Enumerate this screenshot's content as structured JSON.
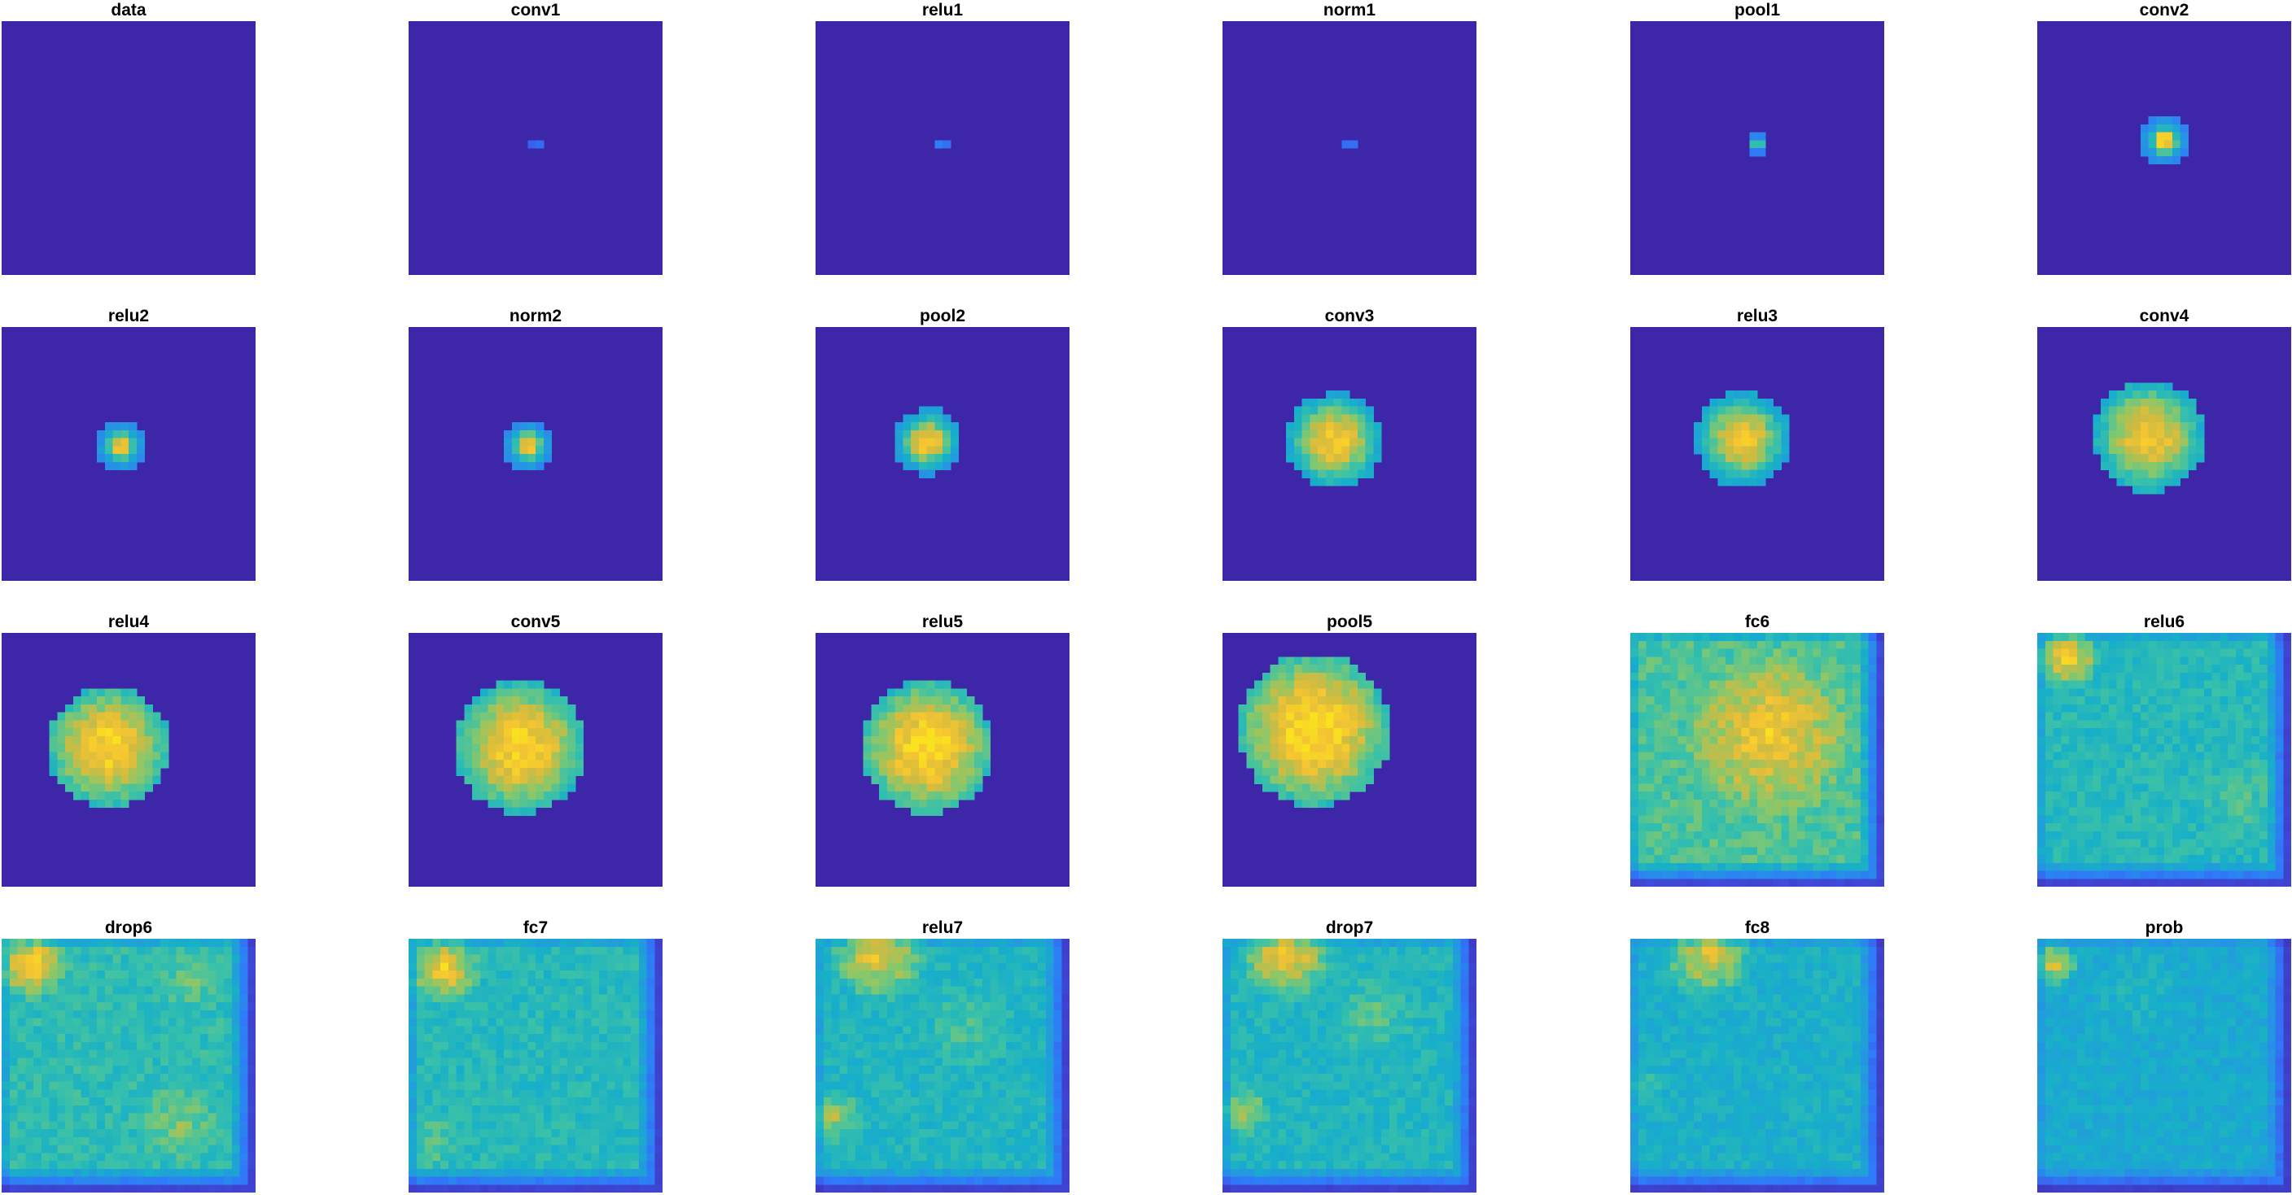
{
  "colors": {
    "background": "#3d26a8",
    "colormap": [
      "#3d26a8",
      "#3f50e1",
      "#2f7af8",
      "#2498e0",
      "#17afc9",
      "#3ac1a8",
      "#86c86c",
      "#d0bb40",
      "#f5c532",
      "#f9e11f"
    ]
  },
  "chart_data": {
    "type": "heatmap",
    "grid": {
      "rows": 4,
      "cols": 6
    },
    "panels": [
      {
        "title": "data",
        "pattern": "blob",
        "cx": 0.5,
        "cy": 0.5,
        "radius": 0.012,
        "peak": 0.55,
        "softness": 0.3
      },
      {
        "title": "conv1",
        "pattern": "blob",
        "cx": 0.5,
        "cy": 0.49,
        "radius": 0.03,
        "peak": 0.65,
        "softness": 0.2
      },
      {
        "title": "relu1",
        "pattern": "blob",
        "cx": 0.5,
        "cy": 0.49,
        "radius": 0.03,
        "peak": 0.8,
        "softness": 0.2
      },
      {
        "title": "norm1",
        "pattern": "blob",
        "cx": 0.5,
        "cy": 0.49,
        "radius": 0.03,
        "peak": 0.8,
        "softness": 0.2
      },
      {
        "title": "pool1",
        "pattern": "blob",
        "cx": 0.5,
        "cy": 0.48,
        "radius": 0.045,
        "peak": 0.95,
        "softness": 0.25
      },
      {
        "title": "conv2",
        "pattern": "blob",
        "cx": 0.5,
        "cy": 0.47,
        "radius": 0.1,
        "peak": 1.0,
        "softness": 0.35
      },
      {
        "title": "relu2",
        "pattern": "blob",
        "cx": 0.47,
        "cy": 0.47,
        "radius": 0.1,
        "peak": 0.95,
        "softness": 0.4
      },
      {
        "title": "norm2",
        "pattern": "blob",
        "cx": 0.47,
        "cy": 0.47,
        "radius": 0.1,
        "peak": 0.95,
        "softness": 0.4
      },
      {
        "title": "pool2",
        "pattern": "blob",
        "cx": 0.44,
        "cy": 0.45,
        "radius": 0.13,
        "peak": 0.95,
        "softness": 0.5
      },
      {
        "title": "conv3",
        "pattern": "blob",
        "cx": 0.44,
        "cy": 0.45,
        "radius": 0.19,
        "peak": 0.92,
        "softness": 0.6
      },
      {
        "title": "relu3",
        "pattern": "blob",
        "cx": 0.44,
        "cy": 0.44,
        "radius": 0.19,
        "peak": 0.88,
        "softness": 0.6
      },
      {
        "title": "conv4",
        "pattern": "blob",
        "cx": 0.44,
        "cy": 0.43,
        "radius": 0.22,
        "peak": 0.9,
        "softness": 0.65
      },
      {
        "title": "relu4",
        "pattern": "blob",
        "cx": 0.42,
        "cy": 0.45,
        "radius": 0.24,
        "peak": 0.95,
        "softness": 0.7
      },
      {
        "title": "conv5",
        "pattern": "blob",
        "cx": 0.44,
        "cy": 0.45,
        "radius": 0.26,
        "peak": 0.95,
        "softness": 0.7
      },
      {
        "title": "relu5",
        "pattern": "blob",
        "cx": 0.44,
        "cy": 0.45,
        "radius": 0.26,
        "peak": 0.98,
        "softness": 0.7
      },
      {
        "title": "pool5",
        "pattern": "blob",
        "cx": 0.36,
        "cy": 0.38,
        "radius": 0.3,
        "peak": 1.0,
        "softness": 0.7
      },
      {
        "title": "fc6",
        "pattern": "field",
        "base": 0.58,
        "hotspots": [
          {
            "cx": 0.55,
            "cy": 0.4,
            "r": 0.35,
            "v": 0.35
          }
        ]
      },
      {
        "title": "relu6",
        "pattern": "field",
        "base": 0.5,
        "hotspots": [
          {
            "cx": 0.12,
            "cy": 0.1,
            "r": 0.13,
            "v": 0.45
          },
          {
            "cx": 0.8,
            "cy": 0.65,
            "r": 0.2,
            "v": 0.08
          }
        ]
      },
      {
        "title": "drop6",
        "pattern": "field",
        "base": 0.52,
        "hotspots": [
          {
            "cx": 0.12,
            "cy": 0.1,
            "r": 0.15,
            "v": 0.45
          },
          {
            "cx": 0.7,
            "cy": 0.72,
            "r": 0.18,
            "v": 0.15
          },
          {
            "cx": 0.75,
            "cy": 0.15,
            "r": 0.15,
            "v": 0.1
          }
        ]
      },
      {
        "title": "fc7",
        "pattern": "field",
        "base": 0.5,
        "hotspots": [
          {
            "cx": 0.14,
            "cy": 0.12,
            "r": 0.15,
            "v": 0.45
          },
          {
            "cx": 0.1,
            "cy": 0.8,
            "r": 0.12,
            "v": 0.12
          }
        ]
      },
      {
        "title": "relu7",
        "pattern": "field",
        "base": 0.48,
        "hotspots": [
          {
            "cx": 0.25,
            "cy": 0.06,
            "r": 0.2,
            "v": 0.42
          },
          {
            "cx": 0.08,
            "cy": 0.7,
            "r": 0.12,
            "v": 0.25
          },
          {
            "cx": 0.6,
            "cy": 0.35,
            "r": 0.2,
            "v": 0.1
          }
        ]
      },
      {
        "title": "drop7",
        "pattern": "field",
        "base": 0.48,
        "hotspots": [
          {
            "cx": 0.25,
            "cy": 0.06,
            "r": 0.2,
            "v": 0.45
          },
          {
            "cx": 0.08,
            "cy": 0.68,
            "r": 0.12,
            "v": 0.25
          },
          {
            "cx": 0.6,
            "cy": 0.3,
            "r": 0.2,
            "v": 0.12
          }
        ]
      },
      {
        "title": "fc8",
        "pattern": "field",
        "base": 0.45,
        "hotspots": [
          {
            "cx": 0.3,
            "cy": 0.06,
            "r": 0.2,
            "v": 0.4
          },
          {
            "cx": 0.05,
            "cy": 0.6,
            "r": 0.1,
            "v": 0.15
          }
        ]
      },
      {
        "title": "prob",
        "pattern": "field",
        "base": 0.42,
        "hotspots": [
          {
            "cx": 0.07,
            "cy": 0.1,
            "r": 0.1,
            "v": 0.45
          },
          {
            "cx": 0.4,
            "cy": 0.2,
            "r": 0.2,
            "v": 0.08
          }
        ]
      }
    ]
  }
}
